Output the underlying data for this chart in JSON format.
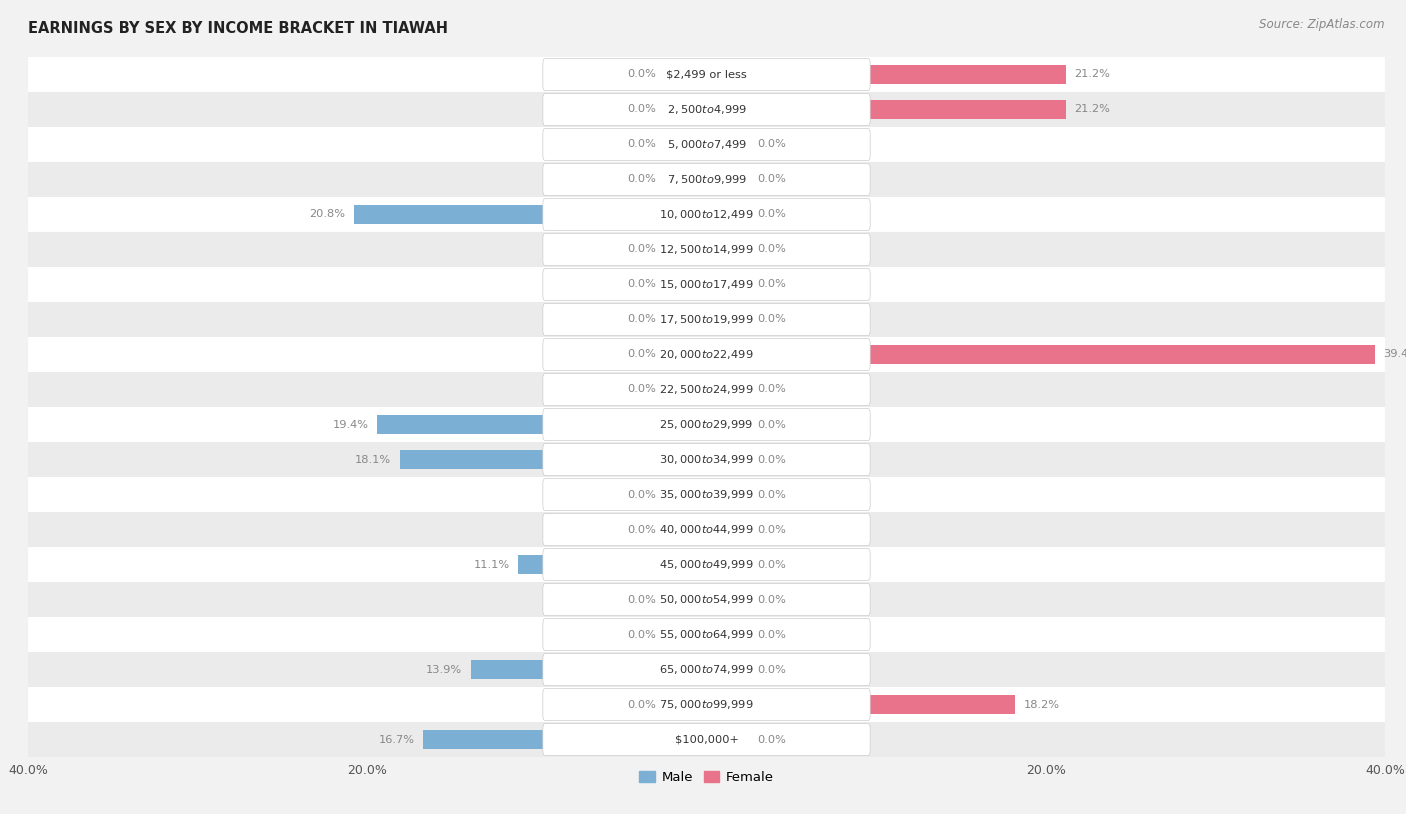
{
  "title": "Earnings by Sex by Income Bracket in Tiawah",
  "source": "Source: ZipAtlas.com",
  "categories": [
    "$2,499 or less",
    "$2,500 to $4,999",
    "$5,000 to $7,499",
    "$7,500 to $9,999",
    "$10,000 to $12,499",
    "$12,500 to $14,999",
    "$15,000 to $17,499",
    "$17,500 to $19,999",
    "$20,000 to $22,499",
    "$22,500 to $24,999",
    "$25,000 to $29,999",
    "$30,000 to $34,999",
    "$35,000 to $39,999",
    "$40,000 to $44,999",
    "$45,000 to $49,999",
    "$50,000 to $54,999",
    "$55,000 to $64,999",
    "$65,000 to $74,999",
    "$75,000 to $99,999",
    "$100,000+"
  ],
  "male_values": [
    0.0,
    0.0,
    0.0,
    0.0,
    20.8,
    0.0,
    0.0,
    0.0,
    0.0,
    0.0,
    19.4,
    18.1,
    0.0,
    0.0,
    11.1,
    0.0,
    0.0,
    13.9,
    0.0,
    16.7
  ],
  "female_values": [
    21.2,
    21.2,
    0.0,
    0.0,
    0.0,
    0.0,
    0.0,
    0.0,
    39.4,
    0.0,
    0.0,
    0.0,
    0.0,
    0.0,
    0.0,
    0.0,
    0.0,
    0.0,
    18.2,
    0.0
  ],
  "male_color": "#7bafd4",
  "male_color_light": "#b8d4e8",
  "female_color": "#e8738a",
  "female_color_light": "#f0aab8",
  "male_label": "Male",
  "female_label": "Female",
  "xlim": 40.0,
  "bg_color": "#f2f2f2",
  "row_colors": [
    "#ffffff",
    "#ebebeb"
  ],
  "label_box_color": "#ffffff",
  "value_label_color": "#888888",
  "title_color": "#222222",
  "source_color": "#888888"
}
